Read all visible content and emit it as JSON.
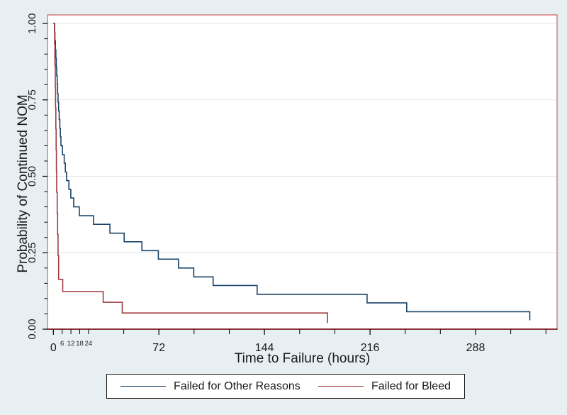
{
  "figure": {
    "bg_color": "#e8eff2",
    "plot_bg": "#ffffff",
    "frame_color": "#cf7a7e",
    "xaxis_line_color": "#8d3438",
    "grid_color": "#dce7ec",
    "tick_color": "#000000",
    "text_color": "#1a1a1a"
  },
  "chart_data": {
    "type": "line",
    "subtype": "kaplan-meier-step",
    "title": "",
    "xlabel": "Time to Failure (hours)",
    "ylabel": "Probability of Continued NOM",
    "xlim": [
      -4,
      343.6
    ],
    "ylim": [
      0,
      1.028
    ],
    "grid": true,
    "grid_values": [
      0.25,
      0.5,
      0.75,
      1.0
    ],
    "x_major_ticks": [
      {
        "value": 0,
        "label": "0"
      },
      {
        "value": 72,
        "label": "72"
      },
      {
        "value": 144,
        "label": "144"
      },
      {
        "value": 216,
        "label": "216"
      },
      {
        "value": 288,
        "label": "288"
      }
    ],
    "x_small_ticks": [
      {
        "value": 6,
        "label": "6"
      },
      {
        "value": 12,
        "label": "12"
      },
      {
        "value": 18,
        "label": "18"
      },
      {
        "value": 24,
        "label": "24"
      }
    ],
    "x_minor_ticks": [
      48,
      96,
      120,
      168,
      192,
      240,
      264,
      312,
      336
    ],
    "y_major_ticks": [
      {
        "value": 0,
        "label": "0.00"
      },
      {
        "value": 0.25,
        "label": "0.25"
      },
      {
        "value": 0.5,
        "label": "0.50"
      },
      {
        "value": 0.75,
        "label": "0.75"
      },
      {
        "value": 1,
        "label": "1.00"
      }
    ],
    "y_minor_tick_step": 0.05,
    "legend_position": "bottom-center",
    "series": [
      {
        "name": "Failed for Other Reasons",
        "color": "#1b4469",
        "points": [
          [
            0,
            1.0
          ],
          [
            0.8,
            0.971
          ],
          [
            1.1,
            0.943
          ],
          [
            1.4,
            0.914
          ],
          [
            1.7,
            0.886
          ],
          [
            2.0,
            0.857
          ],
          [
            2.3,
            0.829
          ],
          [
            2.6,
            0.8
          ],
          [
            2.9,
            0.771
          ],
          [
            3.2,
            0.743
          ],
          [
            3.6,
            0.714
          ],
          [
            4.0,
            0.686
          ],
          [
            4.4,
            0.657
          ],
          [
            4.8,
            0.629
          ],
          [
            5.2,
            0.6
          ],
          [
            6.2,
            0.571
          ],
          [
            7.4,
            0.543
          ],
          [
            8.2,
            0.514
          ],
          [
            9.0,
            0.486
          ],
          [
            10.6,
            0.457
          ],
          [
            11.9,
            0.429
          ],
          [
            13.9,
            0.4
          ],
          [
            17.7,
            0.371
          ],
          [
            27.4,
            0.343
          ],
          [
            38.6,
            0.314
          ],
          [
            48.3,
            0.286
          ],
          [
            60.4,
            0.257
          ],
          [
            71.6,
            0.229
          ],
          [
            85.4,
            0.2
          ],
          [
            95.8,
            0.171
          ],
          [
            109,
            0.143
          ],
          [
            139,
            0.114
          ],
          [
            214,
            0.086
          ],
          [
            241,
            0.057
          ],
          [
            325,
            0.029
          ]
        ]
      },
      {
        "name": "Failed for Bleed",
        "color": "#a03c42",
        "points": [
          [
            0,
            1.0
          ],
          [
            0.9,
            0.931
          ],
          [
            1.1,
            0.862
          ],
          [
            1.3,
            0.793
          ],
          [
            1.5,
            0.724
          ],
          [
            1.7,
            0.655
          ],
          [
            1.9,
            0.586
          ],
          [
            2.1,
            0.517
          ],
          [
            2.3,
            0.448
          ],
          [
            2.6,
            0.379
          ],
          [
            2.9,
            0.31
          ],
          [
            3.2,
            0.241
          ],
          [
            3.6,
            0.163
          ],
          [
            6.4,
            0.123
          ],
          [
            34,
            0.088
          ],
          [
            47,
            0.053
          ],
          [
            187,
            0.02
          ]
        ]
      }
    ]
  }
}
